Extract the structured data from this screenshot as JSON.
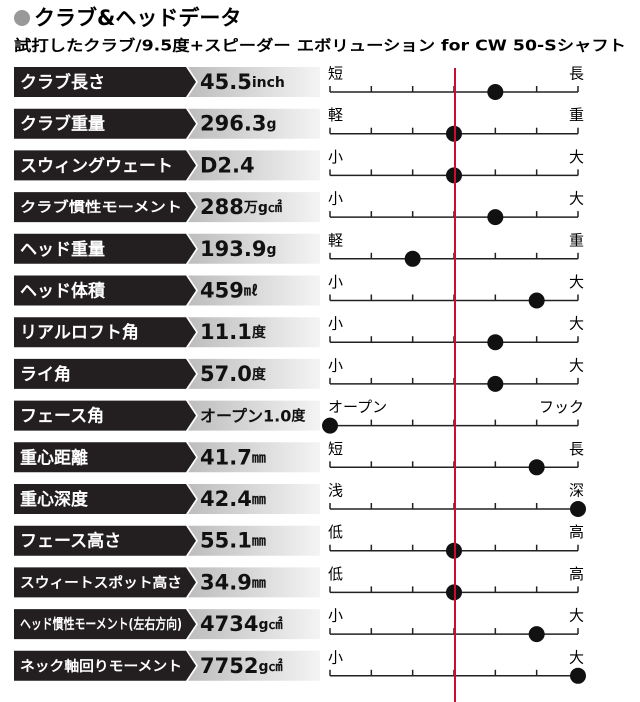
{
  "header": {
    "title": "クラブ&ヘッドデータ",
    "subtitle": "試打したクラブ/9.5度+スピーダー エボリューション for CW 50-Sシャフト"
  },
  "scale_range": [
    0,
    6
  ],
  "rows": [
    {
      "label": "クラブ長さ",
      "value": "45.5",
      "unit": "inch",
      "left": "短",
      "right": "長",
      "position": 4
    },
    {
      "label": "クラブ重量",
      "value": "296.3",
      "unit": "g",
      "left": "軽",
      "right": "重",
      "position": 3
    },
    {
      "label": "スウィングウェート",
      "value": "D2.4",
      "left": "小",
      "right": "大",
      "position": 3
    },
    {
      "label": "クラブ慣性モーメント",
      "value": "288",
      "unit": "万g㎠",
      "left": "小",
      "right": "大",
      "position": 4
    },
    {
      "label": "ヘッド重量",
      "value": "193.9",
      "unit": "g",
      "left": "軽",
      "right": "重",
      "position": 2
    },
    {
      "label": "ヘッド体積",
      "value": "459",
      "unit": "㎖",
      "left": "小",
      "right": "大",
      "position": 5
    },
    {
      "label": "リアルロフト角",
      "value": "11.1",
      "unit": "度",
      "left": "小",
      "right": "大",
      "position": 4
    },
    {
      "label": "ライ角",
      "value": "57.0",
      "unit": "度",
      "left": "小",
      "right": "大",
      "position": 4
    },
    {
      "label": "フェース角",
      "value": "オープン1.0",
      "unit": "度",
      "left": "オープン",
      "right": "フック",
      "position": 0
    },
    {
      "label": "重心距離",
      "value": "41.7",
      "unit": "㎜",
      "left": "短",
      "right": "長",
      "position": 5
    },
    {
      "label": "重心深度",
      "value": "42.4",
      "unit": "㎜",
      "left": "浅",
      "right": "深",
      "position": 6
    },
    {
      "label": "フェース高さ",
      "value": "55.1",
      "unit": "㎜",
      "left": "低",
      "right": "高",
      "position": 3
    },
    {
      "label": "スウィートスポット高さ",
      "value": "34.9",
      "unit": "㎜",
      "left": "低",
      "right": "高",
      "position": 3
    },
    {
      "label": "ヘッド慣性モーメント(左右方向)",
      "value": "4734",
      "unit": "g㎠",
      "left": "小",
      "right": "大",
      "position": 5
    },
    {
      "label": "ネック軸回りモーメント",
      "value": "7752",
      "unit": "g㎠",
      "left": "小",
      "right": "大",
      "position": 6
    }
  ]
}
